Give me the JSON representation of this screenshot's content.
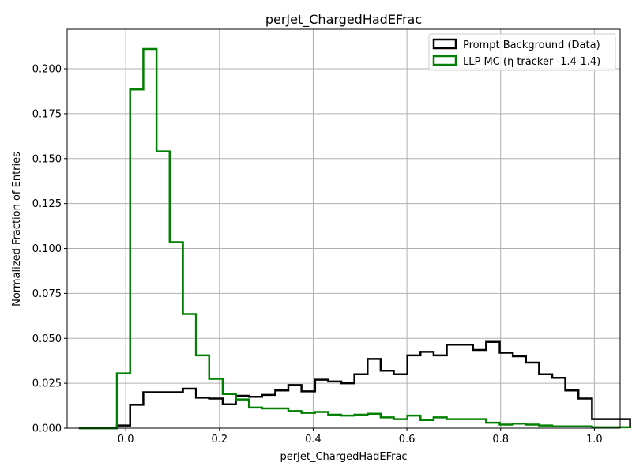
{
  "chart_data": {
    "type": "line",
    "step": true,
    "title": "perJet_ChargedHadEFrac",
    "xlabel": "perJet_ChargedHadEFrac",
    "ylabel": "Normalized Fraction of Entries",
    "xlim": [
      -0.125,
      1.055
    ],
    "ylim": [
      0,
      0.222
    ],
    "x_ticks": [
      0.0,
      0.2,
      0.4,
      0.6,
      0.8,
      1.0
    ],
    "x_tick_labels": [
      "0.0",
      "0.2",
      "0.4",
      "0.6",
      "0.8",
      "1.0"
    ],
    "y_ticks": [
      0,
      0.025,
      0.05,
      0.075,
      0.1,
      0.125,
      0.15,
      0.175,
      0.2
    ],
    "y_tick_labels": [
      "0.000",
      "0.025",
      "0.050",
      "0.075",
      "0.100",
      "0.125",
      "0.150",
      "0.175",
      "0.200"
    ],
    "grid": true,
    "legend_position": "top-right",
    "series": [
      {
        "name": "Prompt Background (Data)",
        "color": "#000000",
        "bin_edges": [
          -0.1,
          -0.0188,
          0.0094,
          0.0375,
          0.0657,
          0.0938,
          0.122,
          0.15,
          0.178,
          0.207,
          0.235,
          0.263,
          0.291,
          0.319,
          0.347,
          0.375,
          0.404,
          0.432,
          0.46,
          0.488,
          0.516,
          0.544,
          0.572,
          0.601,
          0.629,
          0.657,
          0.685,
          0.713,
          0.741,
          0.769,
          0.798,
          0.826,
          0.854,
          0.882,
          0.91,
          0.938,
          0.966,
          0.995
        ],
        "values": [
          0.0,
          0.0015,
          0.013,
          0.02,
          0.02,
          0.02,
          0.022,
          0.017,
          0.0165,
          0.0133,
          0.018,
          0.0175,
          0.0185,
          0.021,
          0.024,
          0.0205,
          0.027,
          0.026,
          0.025,
          0.03,
          0.0385,
          0.032,
          0.03,
          0.0405,
          0.0425,
          0.0405,
          0.0465,
          0.0465,
          0.0435,
          0.048,
          0.042,
          0.04,
          0.0365,
          0.03,
          0.028,
          0.021,
          0.0165,
          0.005
        ]
      },
      {
        "name": "LLP MC (η tracker -1.4-1.4)",
        "color": "#008000",
        "bin_edges": [
          -0.1,
          -0.0188,
          0.0094,
          0.0375,
          0.0657,
          0.0938,
          0.122,
          0.15,
          0.178,
          0.207,
          0.235,
          0.263,
          0.291,
          0.319,
          0.347,
          0.375,
          0.404,
          0.432,
          0.46,
          0.488,
          0.516,
          0.544,
          0.572,
          0.601,
          0.629,
          0.657,
          0.685,
          0.713,
          0.741,
          0.769,
          0.798,
          0.826,
          0.854,
          0.882,
          0.91,
          0.938,
          0.966,
          0.995
        ],
        "values": [
          0.0,
          0.0305,
          0.1885,
          0.211,
          0.154,
          0.1035,
          0.0635,
          0.0405,
          0.0275,
          0.019,
          0.016,
          0.0115,
          0.011,
          0.011,
          0.0095,
          0.0085,
          0.009,
          0.0075,
          0.007,
          0.0075,
          0.008,
          0.006,
          0.005,
          0.007,
          0.0045,
          0.006,
          0.005,
          0.005,
          0.005,
          0.003,
          0.002,
          0.0025,
          0.002,
          0.0015,
          0.001,
          0.001,
          0.001,
          0.0005
        ]
      }
    ]
  }
}
